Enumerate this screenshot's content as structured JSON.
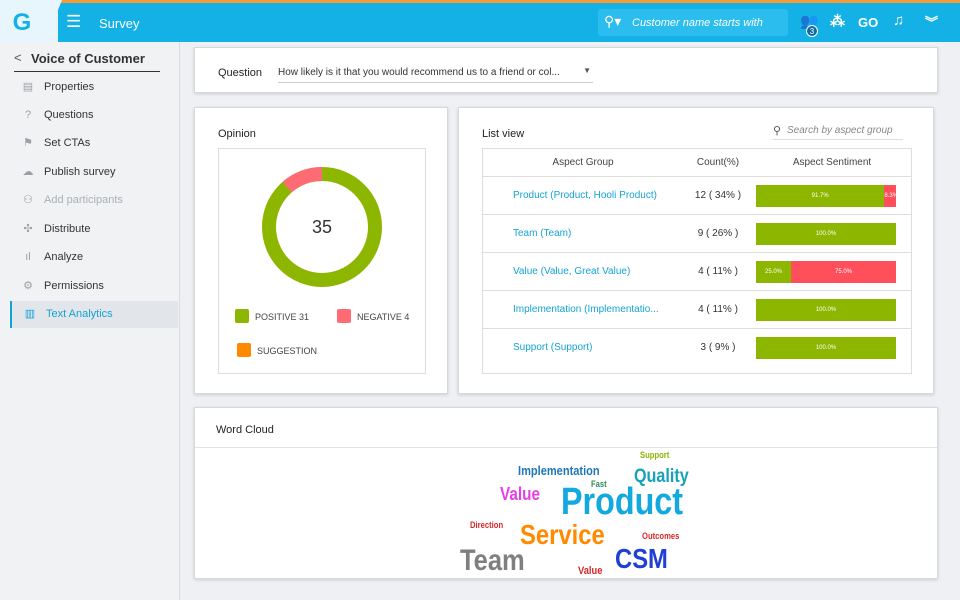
{
  "topbar": {
    "logo": "G",
    "app_title": "Survey",
    "search_placeholder": "Customer name starts with",
    "notif_badge": "3",
    "go_label": "GO",
    "icons": [
      "search-icon",
      "hamburger-icon",
      "people-icon",
      "hierarchy-icon",
      "bell-icon",
      "double-chevron-icon"
    ]
  },
  "sidebar": {
    "title": "Voice of Customer",
    "items": [
      {
        "label": "Properties",
        "icon": "list-icon",
        "state": "normal"
      },
      {
        "label": "Questions",
        "icon": "question-icon",
        "state": "normal"
      },
      {
        "label": "Set CTAs",
        "icon": "flag-icon",
        "state": "normal"
      },
      {
        "label": "Publish survey",
        "icon": "cloud-icon",
        "state": "normal"
      },
      {
        "label": "Add participants",
        "icon": "add-user-icon",
        "state": "disabled"
      },
      {
        "label": "Distribute",
        "icon": "distribute-icon",
        "state": "normal"
      },
      {
        "label": "Analyze",
        "icon": "bar-chart-icon",
        "state": "normal"
      },
      {
        "label": "Permissions",
        "icon": "gear-icon",
        "state": "normal"
      },
      {
        "label": "Text Analytics",
        "icon": "text-chart-icon",
        "state": "active"
      }
    ]
  },
  "question": {
    "label": "Question",
    "value": "How likely is it that you would recommend us to a friend or col..."
  },
  "opinion": {
    "title": "Opinion",
    "total": "35",
    "positive": 31,
    "negative": 4,
    "legend": [
      {
        "label": "POSITIVE 31",
        "color": "#8db600"
      },
      {
        "label": "NEGATIVE 4",
        "color": "#ff6b75"
      },
      {
        "label": "SUGGESTION",
        "color": "#ff8a00"
      }
    ]
  },
  "listview": {
    "title": "List view",
    "search_placeholder": "Search by aspect group",
    "headers": [
      "Aspect Group",
      "Count(%)",
      "Aspect Sentiment"
    ],
    "rows": [
      {
        "name": "Product (Product, Hooli Product)",
        "count": "12 ( 34% )",
        "pos": 91.7,
        "neg": 8.3,
        "pos_label": "91.7%",
        "neg_label": "8.3%"
      },
      {
        "name": "Team (Team)",
        "count": "9 ( 26% )",
        "pos": 100,
        "neg": 0,
        "pos_label": "100.0%",
        "neg_label": ""
      },
      {
        "name": "Value (Value, Great Value)",
        "count": "4 ( 11% )",
        "pos": 25,
        "neg": 75,
        "pos_label": "25.0%",
        "neg_label": "75.0%"
      },
      {
        "name": "Implementation (Implementatio...",
        "count": "4 ( 11% )",
        "pos": 100,
        "neg": 0,
        "pos_label": "100.0%",
        "neg_label": ""
      },
      {
        "name": "Support (Support)",
        "count": "3 ( 9% )",
        "pos": 100,
        "neg": 0,
        "pos_label": "100.0%",
        "neg_label": ""
      }
    ]
  },
  "wordcloud": {
    "title": "Word Cloud",
    "words": [
      {
        "text": "Support",
        "color": "#8db600"
      },
      {
        "text": "Implementation",
        "color": "#1f77b4"
      },
      {
        "text": "Quality",
        "color": "#17a2b8"
      },
      {
        "text": "Fast",
        "color": "#2e8b57"
      },
      {
        "text": "Value",
        "color": "#e83ee8"
      },
      {
        "text": "Product",
        "color": "#12a8e0"
      },
      {
        "text": "Direction",
        "color": "#d62728"
      },
      {
        "text": "Service",
        "color": "#ff8a00"
      },
      {
        "text": "Outcomes",
        "color": "#d62728"
      },
      {
        "text": "Team",
        "color": "#7f7f7f"
      },
      {
        "text": "CSM",
        "color": "#1f3fd6"
      },
      {
        "text": "Value",
        "color": "#d62728"
      }
    ]
  }
}
